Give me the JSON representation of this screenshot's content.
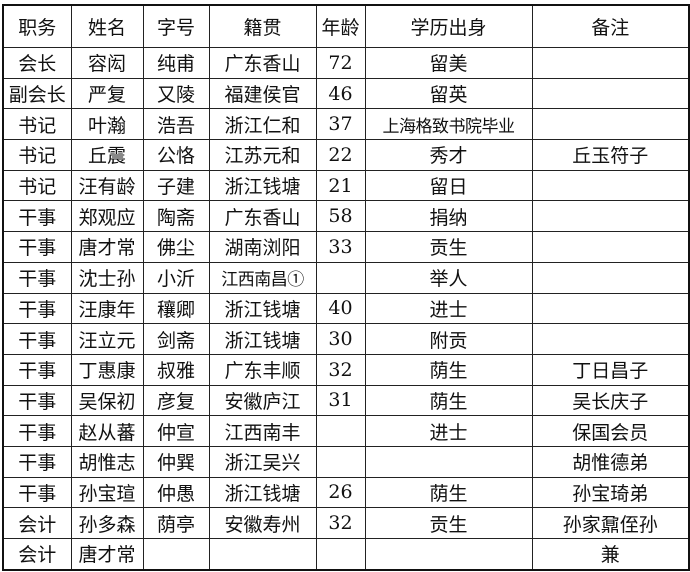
{
  "table": {
    "headers": [
      "职务",
      "姓名",
      "字号",
      "籍贯",
      "年龄",
      "学历出身",
      "备注"
    ],
    "rows": [
      [
        "会长",
        "容闳",
        "纯甫",
        "广东香山",
        "72",
        "留美",
        ""
      ],
      [
        "副会长",
        "严复",
        "又陵",
        "福建侯官",
        "46",
        "留英",
        ""
      ],
      [
        "书记",
        "叶瀚",
        "浩吾",
        "浙江仁和",
        "37",
        "上海格致书院毕业",
        ""
      ],
      [
        "书记",
        "丘震",
        "公恪",
        "江苏元和",
        "22",
        "秀才",
        "丘玉符子"
      ],
      [
        "书记",
        "汪有龄",
        "子建",
        "浙江钱塘",
        "21",
        "留日",
        ""
      ],
      [
        "干事",
        "郑观应",
        "陶斋",
        "广东香山",
        "58",
        "捐纳",
        ""
      ],
      [
        "干事",
        "唐才常",
        "佛尘",
        "湖南浏阳",
        "33",
        "贡生",
        ""
      ],
      [
        "干事",
        "沈士孙",
        "小沂",
        "江西南昌①",
        "",
        "举人",
        ""
      ],
      [
        "干事",
        "汪康年",
        "穰卿",
        "浙江钱塘",
        "40",
        "进士",
        ""
      ],
      [
        "干事",
        "汪立元",
        "剑斋",
        "浙江钱塘",
        "30",
        "附贡",
        ""
      ],
      [
        "干事",
        "丁惠康",
        "叔雅",
        "广东丰顺",
        "32",
        "荫生",
        "丁日昌子"
      ],
      [
        "干事",
        "吴保初",
        "彦复",
        "安徽庐江",
        "31",
        "荫生",
        "吴长庆子"
      ],
      [
        "干事",
        "赵从蕃",
        "仲宣",
        "江西南丰",
        "",
        "进士",
        "保国会员"
      ],
      [
        "干事",
        "胡惟志",
        "仲巽",
        "浙江吴兴",
        "",
        "",
        "胡惟德弟"
      ],
      [
        "干事",
        "孙宝瑄",
        "仲愚",
        "浙江钱塘",
        "26",
        "荫生",
        "孙宝琦弟"
      ],
      [
        "会计",
        "孙多森",
        "荫亭",
        "安徽寿州",
        "32",
        "贡生",
        "孙家鼐侄孙"
      ],
      [
        "会计",
        "唐才常",
        "",
        "",
        "",
        "",
        "兼"
      ]
    ]
  }
}
